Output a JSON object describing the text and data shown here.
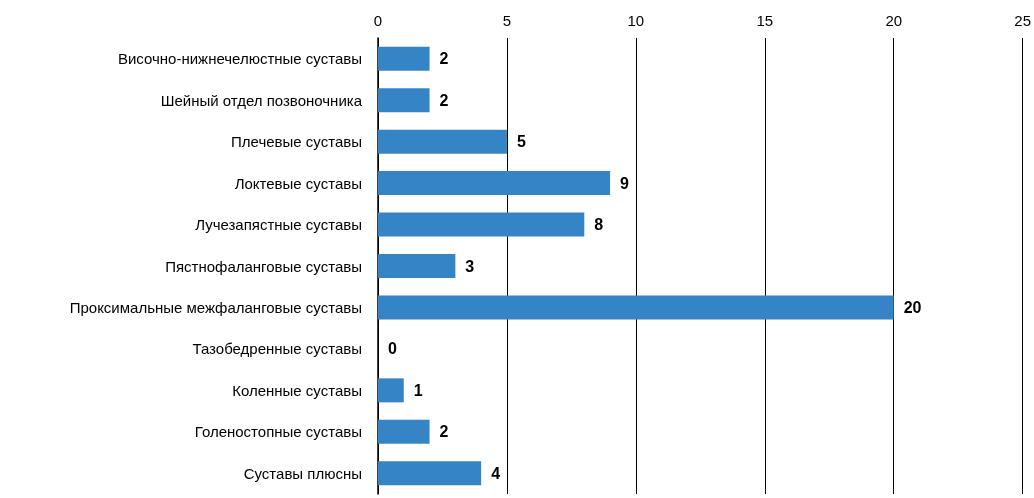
{
  "chart_data": {
    "type": "bar",
    "orientation": "horizontal",
    "categories": [
      "Височно-нижнечелюстные суставы",
      "Шейный отдел позвоночника",
      "Плечевые суставы",
      "Локтевые суставы",
      "Лучезапястные суставы",
      "Пястнофаланговые суставы",
      "Проксимальные межфаланговые суставы",
      "Тазобедренные суставы",
      "Коленные суставы",
      "Голеностопные суставы",
      "Суставы плюсны"
    ],
    "values": [
      2,
      2,
      5,
      9,
      8,
      3,
      20,
      0,
      1,
      2,
      4
    ],
    "color": "#3585c6",
    "xlim": [
      0,
      25
    ],
    "xticks": [
      0,
      5,
      10,
      15,
      20,
      25
    ],
    "grid": "x",
    "data_labels": true
  }
}
